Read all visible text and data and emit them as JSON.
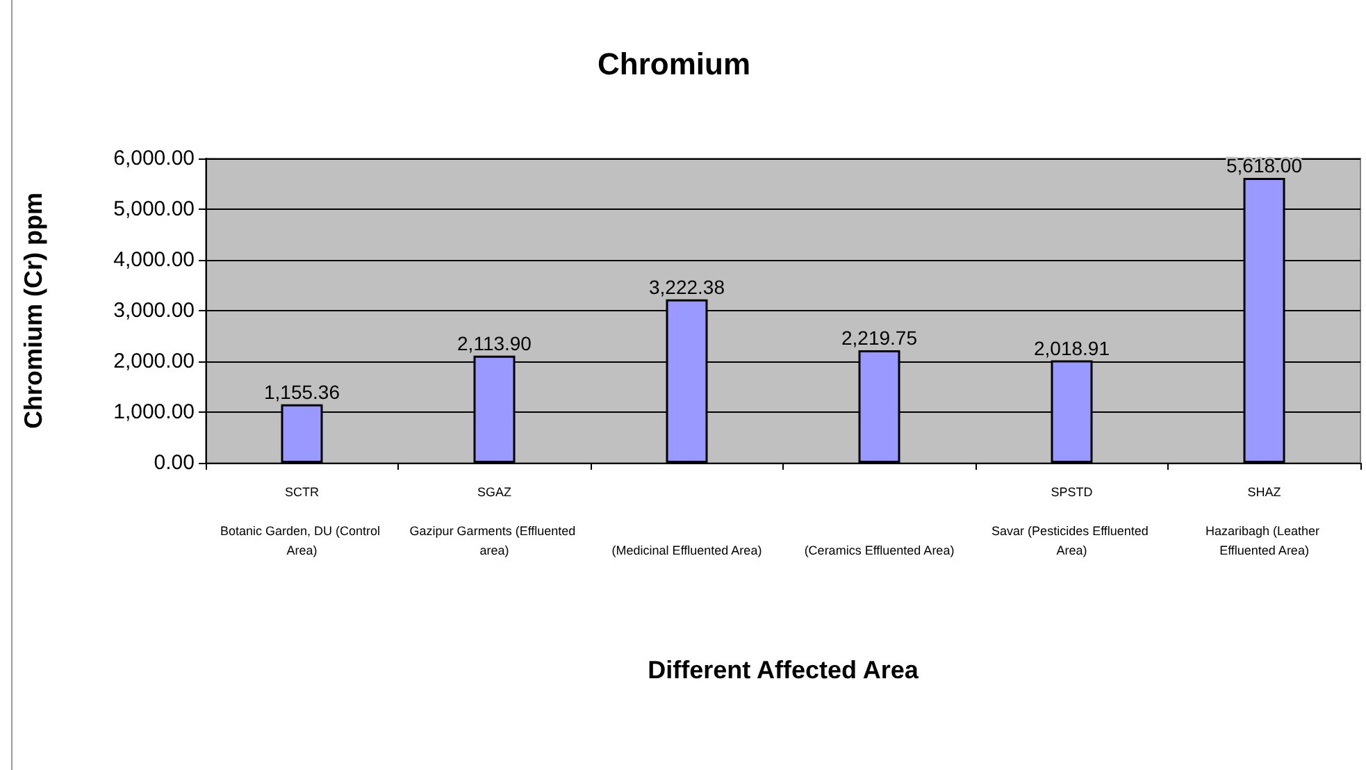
{
  "chart_data": {
    "type": "bar",
    "title": "Chromium",
    "xlabel": "Different Affected Area",
    "ylabel": "Chromium (Cr) ppm",
    "categories": [
      "SCTR\nBotanic Garden, DU (Control Area)",
      "SGAZ\nGazipur Garments (Effluented area)",
      "(Medicinal Effluented Area)",
      "(Ceramics Effluented Area)",
      "SPSTD\nSavar (Pesticides Effluented Area)",
      "SHAZ\nHazaribagh (Leather Effluented Area)"
    ],
    "values": [
      1155.36,
      2113.9,
      3222.38,
      2219.75,
      2018.91,
      5618.0
    ],
    "value_labels": [
      "1,155.36",
      "2,113.90",
      "3,222.38",
      "2,219.75",
      "2,018.91",
      "5,618.00"
    ],
    "color": "#9999ff",
    "ylim": [
      0,
      6000
    ],
    "yticks": [
      {
        "value": 0,
        "label": "0.00"
      },
      {
        "value": 1000,
        "label": "1,000.00"
      },
      {
        "value": 2000,
        "label": "2,000.00"
      },
      {
        "value": 3000,
        "label": "3,000.00"
      },
      {
        "value": 4000,
        "label": "4,000.00"
      },
      {
        "value": 5000,
        "label": "5,000.00"
      },
      {
        "value": 6000,
        "label": "6,000.00"
      }
    ],
    "grid": "y"
  }
}
